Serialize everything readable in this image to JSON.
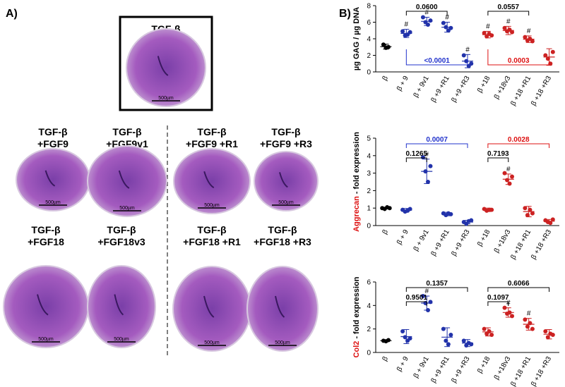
{
  "panel_a": {
    "label": "A)",
    "top": {
      "title": [
        "TGF-β"
      ],
      "scale": "500µm"
    },
    "images": [
      {
        "title": [
          "TGF-β",
          "+FGF9"
        ],
        "scale": "500µm"
      },
      {
        "title": [
          "TGF-β",
          "+FGF9v1"
        ],
        "scale": "500µm"
      },
      {
        "title": [
          "TGF-β",
          "+FGF9 +R1"
        ],
        "scale": "500µm"
      },
      {
        "title": [
          "TGF-β",
          "+FGF9 +R3"
        ],
        "scale": "500µm"
      },
      {
        "title": [
          "TGF-β",
          "+FGF18"
        ],
        "scale": "500µm"
      },
      {
        "title": [
          "TGF-β",
          "+FGF18v3"
        ],
        "scale": "500µm"
      },
      {
        "title": [
          "TGF-β",
          "+FGF18 +R1"
        ],
        "scale": "500µm"
      },
      {
        "title": [
          "TGF-β",
          "+FGF18 +R3"
        ],
        "scale": "500µm"
      }
    ]
  },
  "panel_b_label": "B)",
  "chart_data": [
    {
      "type": "dot",
      "ylabel": "µg GAG / µg DNA",
      "ylim": [
        0,
        8
      ],
      "yticks": [
        0,
        2,
        4,
        6,
        8
      ],
      "categories": [
        "β",
        "β + 9",
        "β + 9v1",
        "β +9 +R1",
        "β +9 +R3",
        "β +18",
        "β +18v3",
        "β +18 +R1",
        "β +18 +R3"
      ],
      "groups": [
        {
          "color": "#000000",
          "points": [
            3.3,
            2.9,
            3.0
          ],
          "mean": 3.05,
          "sd": 0.3
        },
        {
          "color": "#2233aa",
          "points": [
            4.9,
            4.4,
            4.5,
            4.8
          ],
          "mean": 4.65,
          "sd": 0.5,
          "flag": "#"
        },
        {
          "color": "#2233aa",
          "points": [
            6.6,
            6.0,
            5.7,
            6.2
          ],
          "mean": 6.1,
          "sd": 0.5,
          "flag": "#"
        },
        {
          "color": "#2233aa",
          "points": [
            5.9,
            5.4,
            5.0,
            5.3
          ],
          "mean": 5.4,
          "sd": 0.6,
          "flag": "#"
        },
        {
          "color": "#2233aa",
          "points": [
            2.0,
            1.3,
            0.7,
            1.0
          ],
          "mean": 1.3,
          "sd": 0.8,
          "flag": "#"
        },
        {
          "color": "#cc2222",
          "points": [
            4.7,
            4.3,
            4.6,
            4.4
          ],
          "mean": 4.5,
          "sd": 0.4,
          "flag": "#"
        },
        {
          "color": "#cc2222",
          "points": [
            5.3,
            4.9,
            5.1,
            4.8
          ],
          "mean": 5.0,
          "sd": 0.5,
          "flag": "#"
        },
        {
          "color": "#cc2222",
          "points": [
            4.2,
            3.8,
            4.0,
            3.7
          ],
          "mean": 3.95,
          "sd": 0.4,
          "flag": "#"
        },
        {
          "color": "#cc2222",
          "points": [
            2.0,
            1.6,
            1.0,
            2.4
          ],
          "mean": 1.8,
          "sd": 1.0
        }
      ],
      "brackets": [
        {
          "between": [
            "β + 9",
            "β +9 +R1"
          ],
          "label": "0.0600",
          "color": "#000000"
        },
        {
          "between": [
            "β + 9",
            "β +9 +R3"
          ],
          "label": "<0.0001",
          "color": "#2233cc",
          "below": true
        },
        {
          "between": [
            "β +18",
            "β +18 +R1"
          ],
          "label": "0.0557",
          "color": "#000000"
        },
        {
          "between": [
            "β +18",
            "β +18 +R3"
          ],
          "label": "0.0003",
          "color": "#dd1111",
          "below": true
        }
      ]
    },
    {
      "type": "dot",
      "ylabel_gene": "Aggrecan",
      "ylabel": " - fold expression",
      "ylim": [
        0,
        5
      ],
      "yticks": [
        0,
        1,
        2,
        3,
        4,
        5
      ],
      "categories": [
        "β",
        "β + 9",
        "β + 9v1",
        "β +9 +R1",
        "β +9 +R3",
        "β +18",
        "β +18v3",
        "β +18 +R1",
        "β +18 +R3"
      ],
      "groups": [
        {
          "color": "#000000",
          "points": [
            1.0,
            0.95,
            1.05,
            1.0
          ],
          "mean": 1.0,
          "sd": 0.05
        },
        {
          "color": "#2233aa",
          "points": [
            0.9,
            0.8,
            0.85,
            0.95
          ],
          "mean": 0.88,
          "sd": 0.1
        },
        {
          "color": "#2233aa",
          "points": [
            3.9,
            3.1,
            2.5,
            3.4
          ],
          "mean": 3.1,
          "sd": 0.7,
          "flag": "#"
        },
        {
          "color": "#2233aa",
          "points": [
            0.7,
            0.6,
            0.7,
            0.65
          ],
          "mean": 0.66,
          "sd": 0.1
        },
        {
          "color": "#2233aa",
          "points": [
            0.2,
            0.1,
            0.25,
            0.3
          ],
          "mean": 0.2,
          "sd": 0.1
        },
        {
          "color": "#cc2222",
          "points": [
            0.95,
            0.85,
            0.9,
            0.9
          ],
          "mean": 0.9,
          "sd": 0.1
        },
        {
          "color": "#cc2222",
          "points": [
            3.0,
            2.6,
            2.4,
            2.8
          ],
          "mean": 2.65,
          "sd": 0.3,
          "flag": "#"
        },
        {
          "color": "#cc2222",
          "points": [
            1.0,
            0.6,
            0.9,
            0.7
          ],
          "mean": 0.8,
          "sd": 0.3
        },
        {
          "color": "#cc2222",
          "points": [
            0.3,
            0.2,
            0.15,
            0.35
          ],
          "mean": 0.25,
          "sd": 0.1
        }
      ],
      "brackets": [
        {
          "between": [
            "β + 9",
            "β +9 +R3"
          ],
          "label": "0.0007",
          "color": "#2233cc"
        },
        {
          "between": [
            "β + 9",
            "β + 9v1"
          ],
          "label": "0.1265",
          "color": "#000000"
        },
        {
          "between": [
            "β +18",
            "β +18 +R3"
          ],
          "label": "0.0028",
          "color": "#dd1111"
        },
        {
          "between": [
            "β +18",
            "β +18v3"
          ],
          "label": "0.7193",
          "color": "#000000"
        }
      ]
    },
    {
      "type": "dot",
      "ylabel_gene": "Col2",
      "ylabel": " - fold expression",
      "ylim": [
        0,
        6
      ],
      "yticks": [
        0,
        2,
        4,
        6
      ],
      "categories": [
        "β",
        "β + 9",
        "β + 9v1",
        "β +9 +R1",
        "β +9 +R3",
        "β +18",
        "β +18v3",
        "β +18 +R1",
        "β +18 +R3"
      ],
      "groups": [
        {
          "color": "#000000",
          "points": [
            1.0,
            0.95,
            1.05
          ],
          "mean": 1.0,
          "sd": 0.05
        },
        {
          "color": "#2233aa",
          "points": [
            1.8,
            1.3,
            1.0,
            1.2
          ],
          "mean": 1.35,
          "sd": 0.6
        },
        {
          "color": "#2233aa",
          "points": [
            4.8,
            4.2,
            3.6,
            4.3
          ],
          "mean": 4.2,
          "sd": 0.6,
          "flag": "#"
        },
        {
          "color": "#2233aa",
          "points": [
            2.0,
            1.0,
            0.7,
            1.5
          ],
          "mean": 1.3,
          "sd": 0.8
        },
        {
          "color": "#2233aa",
          "points": [
            1.0,
            0.6,
            0.8,
            0.7
          ],
          "mean": 0.8,
          "sd": 0.3
        },
        {
          "color": "#cc2222",
          "points": [
            2.0,
            1.6,
            1.8,
            1.5
          ],
          "mean": 1.75,
          "sd": 0.35
        },
        {
          "color": "#cc2222",
          "points": [
            3.8,
            3.3,
            3.4,
            3.1
          ],
          "mean": 3.4,
          "sd": 0.4,
          "flag": "#"
        },
        {
          "color": "#cc2222",
          "points": [
            2.8,
            2.2,
            2.5,
            2.0
          ],
          "mean": 2.4,
          "sd": 0.5,
          "flag": "#"
        },
        {
          "color": "#cc2222",
          "points": [
            1.8,
            1.3,
            1.6,
            1.5
          ],
          "mean": 1.55,
          "sd": 0.4
        }
      ],
      "brackets": [
        {
          "between": [
            "β + 9",
            "β +9 +R3"
          ],
          "label": "0.1357",
          "color": "#000000"
        },
        {
          "between": [
            "β + 9",
            "β + 9v1"
          ],
          "label": "0.9501",
          "color": "#000000"
        },
        {
          "between": [
            "β +18",
            "β +18 +R3"
          ],
          "label": "0.6066",
          "color": "#000000"
        },
        {
          "between": [
            "β +18",
            "β +18v3"
          ],
          "label": "0.1097",
          "color": "#000000"
        }
      ]
    }
  ]
}
